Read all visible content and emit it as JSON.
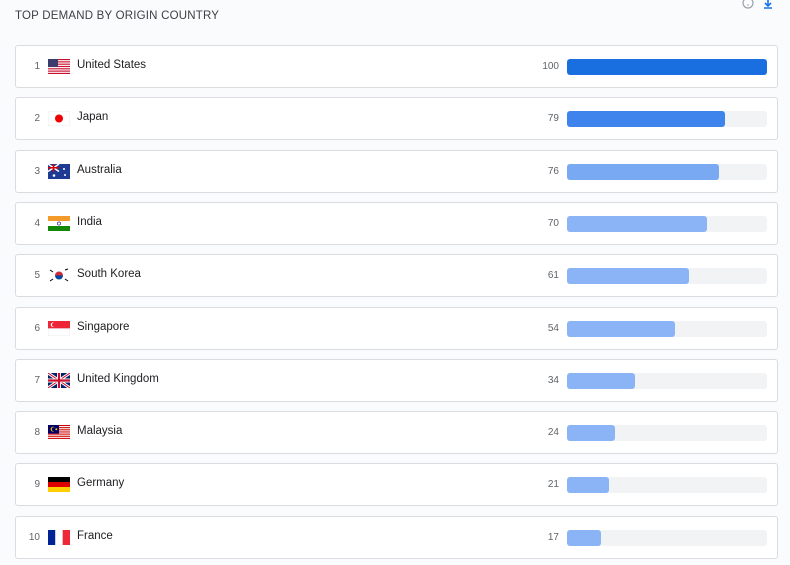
{
  "header": {
    "title": "TOP DEMAND BY ORIGIN COUNTRY"
  },
  "rows": [
    {
      "rank": 1,
      "country": "United States",
      "value": 100,
      "color": "#1a6fe0"
    },
    {
      "rank": 2,
      "country": "Japan",
      "value": 79,
      "color": "#3f84ec"
    },
    {
      "rank": 3,
      "country": "Australia",
      "value": 76,
      "color": "#7aa9f3"
    },
    {
      "rank": 4,
      "country": "India",
      "value": 70,
      "color": "#8ab4f6"
    },
    {
      "rank": 5,
      "country": "South Korea",
      "value": 61,
      "color": "#8ab4f6"
    },
    {
      "rank": 6,
      "country": "Singapore",
      "value": 54,
      "color": "#8ab4f6"
    },
    {
      "rank": 7,
      "country": "United Kingdom",
      "value": 34,
      "color": "#8ab4f6"
    },
    {
      "rank": 8,
      "country": "Malaysia",
      "value": 24,
      "color": "#8ab4f6"
    },
    {
      "rank": 9,
      "country": "Germany",
      "value": 21,
      "color": "#8ab4f6"
    },
    {
      "rank": 10,
      "country": "France",
      "value": 17,
      "color": "#8ab4f6"
    }
  ]
}
